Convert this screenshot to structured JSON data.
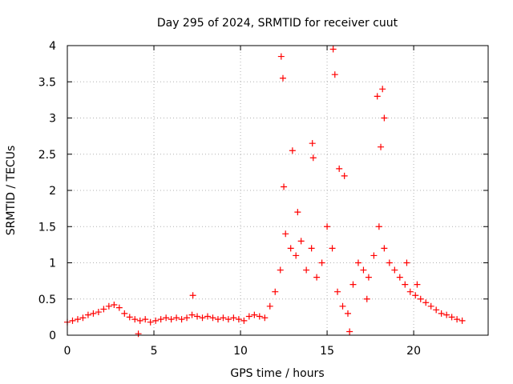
{
  "chart_data": {
    "type": "scatter",
    "title": "Day 295 of 2024, SRMTID for receiver cuut",
    "xlabel": "GPS time / hours",
    "ylabel": "SRMTID / TECUs",
    "xlim": [
      0,
      24.3
    ],
    "ylim": [
      0,
      4
    ],
    "x_ticks": [
      0,
      5,
      10,
      15,
      20
    ],
    "x_tick_labels": [
      "0",
      "5",
      "10",
      "15",
      "20"
    ],
    "y_ticks": [
      0,
      0.5,
      1,
      1.5,
      2,
      2.5,
      3,
      3.5,
      4
    ],
    "y_tick_labels": [
      "0",
      "0.5",
      "1",
      "1.5",
      "2",
      "2.5",
      "3",
      "3.5",
      "4"
    ],
    "grid": true,
    "marker": "+",
    "color": "#ff0000",
    "series": [
      {
        "name": "SRMTID",
        "x": [
          0.0,
          0.3,
          0.6,
          0.9,
          1.2,
          1.5,
          1.8,
          2.1,
          2.4,
          2.7,
          3.0,
          3.3,
          3.6,
          3.9,
          4.2,
          4.5,
          4.8,
          5.1,
          5.4,
          5.7,
          6.0,
          6.3,
          6.6,
          6.9,
          7.2,
          7.5,
          7.8,
          8.1,
          8.4,
          8.7,
          9.0,
          9.3,
          9.6,
          9.9,
          10.2,
          10.5,
          10.8,
          11.1,
          11.4,
          11.7,
          12.0,
          12.3,
          12.6,
          12.9,
          13.2,
          13.5,
          13.8,
          14.1,
          14.4,
          14.7,
          15.0,
          15.3,
          15.6,
          15.9,
          16.2,
          16.5,
          16.8,
          17.1,
          17.4,
          17.7,
          18.0,
          18.3,
          18.6,
          18.9,
          19.2,
          19.5,
          19.8,
          20.1,
          20.4,
          20.7,
          21.0,
          21.3,
          21.6,
          21.9,
          22.2,
          22.5,
          22.8,
          12.35,
          12.45,
          15.35,
          15.45,
          18.2,
          18.3,
          13.0,
          14.15,
          14.2,
          15.7,
          17.9,
          18.1,
          12.5,
          13.3,
          16.0,
          16.3,
          17.3,
          4.1,
          7.25,
          19.6,
          20.2
        ],
        "y": [
          0.18,
          0.2,
          0.22,
          0.24,
          0.28,
          0.3,
          0.32,
          0.36,
          0.4,
          0.42,
          0.38,
          0.3,
          0.25,
          0.22,
          0.2,
          0.22,
          0.18,
          0.2,
          0.22,
          0.24,
          0.22,
          0.24,
          0.22,
          0.24,
          0.28,
          0.26,
          0.24,
          0.26,
          0.24,
          0.22,
          0.24,
          0.22,
          0.24,
          0.22,
          0.2,
          0.26,
          0.28,
          0.26,
          0.24,
          0.4,
          0.6,
          0.9,
          1.4,
          1.2,
          1.1,
          1.3,
          0.9,
          1.2,
          0.8,
          1.0,
          1.5,
          1.2,
          0.6,
          0.4,
          0.3,
          0.7,
          1.0,
          0.9,
          0.8,
          1.1,
          1.5,
          1.2,
          1.0,
          0.9,
          0.8,
          0.7,
          0.6,
          0.55,
          0.5,
          0.45,
          0.4,
          0.35,
          0.3,
          0.28,
          0.25,
          0.22,
          0.2,
          3.85,
          3.55,
          3.95,
          3.6,
          3.4,
          3.0,
          2.55,
          2.65,
          2.45,
          2.3,
          3.3,
          2.6,
          2.05,
          1.7,
          2.2,
          0.05,
          0.5,
          0.02,
          0.55,
          1.0,
          0.7
        ]
      }
    ]
  }
}
